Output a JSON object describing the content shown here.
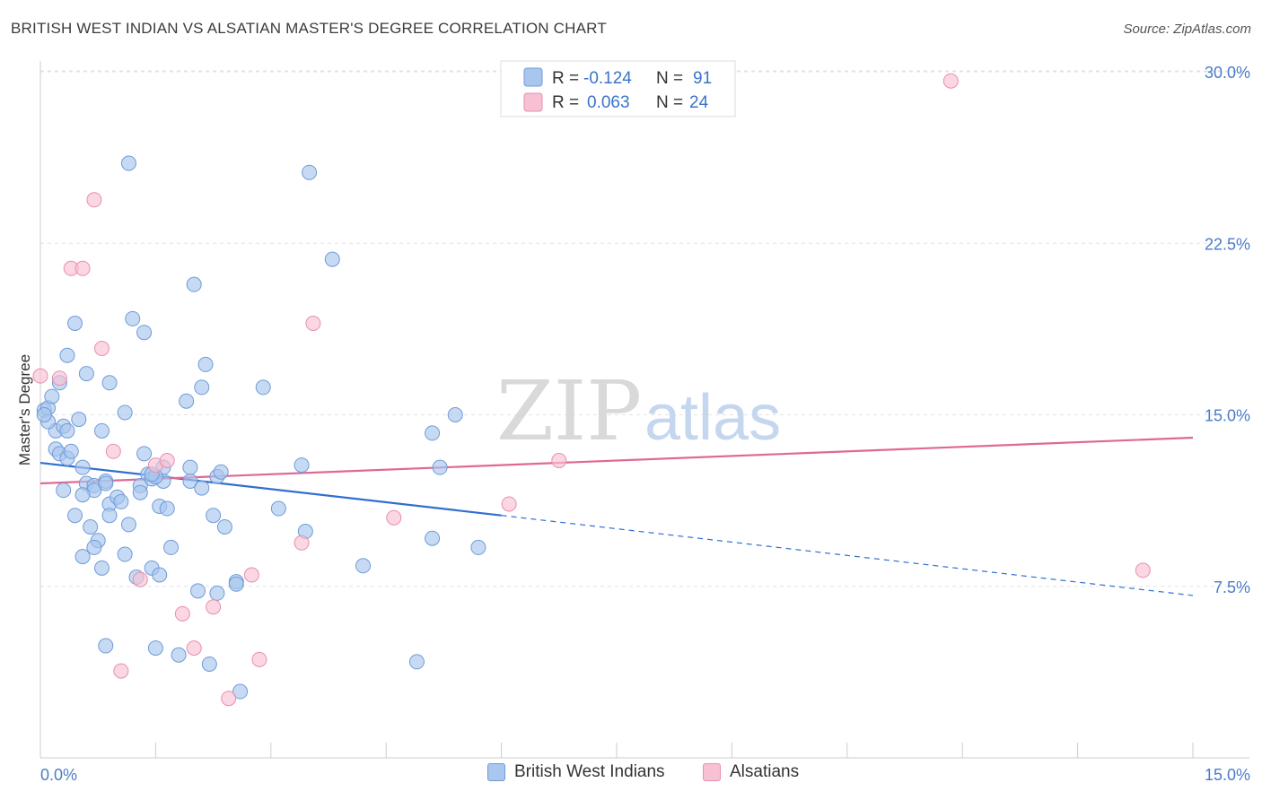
{
  "title": "BRITISH WEST INDIAN VS ALSATIAN MASTER'S DEGREE CORRELATION CHART",
  "source": "Source: ZipAtlas.com",
  "watermark": {
    "part1": "ZIP",
    "part2": "atlas"
  },
  "legend": {
    "rows": [
      {
        "r_label": "R =",
        "r_value": "-0.124",
        "n_label": "N =",
        "n_value": "91",
        "color": "#a9c6ee",
        "stroke": "#6f9bd8"
      },
      {
        "r_label": "R =",
        "r_value": "0.063",
        "n_label": "N =",
        "n_value": "24",
        "color": "#f7c1d3",
        "stroke": "#e88fae"
      }
    ]
  },
  "bottom_legend": [
    {
      "label": "British West Indians",
      "color": "#a9c6ee",
      "stroke": "#6f9bd8"
    },
    {
      "label": "Alsatians",
      "color": "#f7c1d3",
      "stroke": "#e88fae"
    }
  ],
  "chart_data": {
    "type": "scatter",
    "title": "BRITISH WEST INDIAN VS ALSATIAN MASTER'S DEGREE CORRELATION CHART",
    "xlabel": "",
    "ylabel": "Master's Degree",
    "xlim": [
      0,
      15
    ],
    "ylim": [
      0,
      31
    ],
    "x_tick_labels": [
      "0.0%",
      "15.0%"
    ],
    "y_ticks": [
      7.5,
      15.0,
      22.5,
      30.0
    ],
    "y_tick_labels": [
      "7.5%",
      "15.0%",
      "22.5%",
      "30.0%"
    ],
    "grid": true,
    "legend_position": "top-center",
    "series": [
      {
        "name": "British West Indians",
        "color": "#6f9bd8",
        "fill": "#a9c6ee",
        "trend": {
          "x0": 0,
          "y0": 12.9,
          "x1": 6.0,
          "y1": 10.6,
          "x_dash_end": 15.0,
          "y_dash_end": 7.1
        },
        "points": [
          [
            0.05,
            15.2
          ],
          [
            0.1,
            15.3
          ],
          [
            0.15,
            15.8
          ],
          [
            0.2,
            14.3
          ],
          [
            0.1,
            14.7
          ],
          [
            0.05,
            15.0
          ],
          [
            0.25,
            16.4
          ],
          [
            0.35,
            17.6
          ],
          [
            0.45,
            19.0
          ],
          [
            0.6,
            16.8
          ],
          [
            0.9,
            16.4
          ],
          [
            1.1,
            15.1
          ],
          [
            1.15,
            26.0
          ],
          [
            1.2,
            19.2
          ],
          [
            1.35,
            18.6
          ],
          [
            0.5,
            14.8
          ],
          [
            0.3,
            14.5
          ],
          [
            0.35,
            14.3
          ],
          [
            0.8,
            14.3
          ],
          [
            0.2,
            13.5
          ],
          [
            0.25,
            13.3
          ],
          [
            0.35,
            13.1
          ],
          [
            0.55,
            12.7
          ],
          [
            0.6,
            12.0
          ],
          [
            0.7,
            11.9
          ],
          [
            0.7,
            11.7
          ],
          [
            0.85,
            12.1
          ],
          [
            0.9,
            11.1
          ],
          [
            1.0,
            11.4
          ],
          [
            1.05,
            11.2
          ],
          [
            1.3,
            11.9
          ],
          [
            1.3,
            11.6
          ],
          [
            1.35,
            13.3
          ],
          [
            1.4,
            12.4
          ],
          [
            1.45,
            12.2
          ],
          [
            1.6,
            12.1
          ],
          [
            1.6,
            12.7
          ],
          [
            1.55,
            11.0
          ],
          [
            1.65,
            10.9
          ],
          [
            0.45,
            10.6
          ],
          [
            0.65,
            10.1
          ],
          [
            0.9,
            10.6
          ],
          [
            1.15,
            10.2
          ],
          [
            0.75,
            9.5
          ],
          [
            0.7,
            9.2
          ],
          [
            0.55,
            8.8
          ],
          [
            0.8,
            8.3
          ],
          [
            1.1,
            8.9
          ],
          [
            1.25,
            7.9
          ],
          [
            1.45,
            8.3
          ],
          [
            1.55,
            8.0
          ],
          [
            1.7,
            9.2
          ],
          [
            1.9,
            15.6
          ],
          [
            2.0,
            20.7
          ],
          [
            2.1,
            16.2
          ],
          [
            2.15,
            17.2
          ],
          [
            1.95,
            12.1
          ],
          [
            1.95,
            12.7
          ],
          [
            2.1,
            11.8
          ],
          [
            2.3,
            12.3
          ],
          [
            2.35,
            12.5
          ],
          [
            2.25,
            10.6
          ],
          [
            2.4,
            10.1
          ],
          [
            2.05,
            7.3
          ],
          [
            2.3,
            7.2
          ],
          [
            2.55,
            7.7
          ],
          [
            2.55,
            7.6
          ],
          [
            2.9,
            16.2
          ],
          [
            3.1,
            10.9
          ],
          [
            3.4,
            12.8
          ],
          [
            3.45,
            9.9
          ],
          [
            3.5,
            25.6
          ],
          [
            3.8,
            21.8
          ],
          [
            4.2,
            8.4
          ],
          [
            4.9,
            4.2
          ],
          [
            5.1,
            14.2
          ],
          [
            5.1,
            9.6
          ],
          [
            5.2,
            12.7
          ],
          [
            5.4,
            15.0
          ],
          [
            5.7,
            9.2
          ],
          [
            0.85,
            4.9
          ],
          [
            1.5,
            4.8
          ],
          [
            1.8,
            4.5
          ],
          [
            2.2,
            4.1
          ],
          [
            2.6,
            2.9
          ],
          [
            0.3,
            11.7
          ],
          [
            0.55,
            11.5
          ],
          [
            1.5,
            12.3
          ],
          [
            1.45,
            12.4
          ],
          [
            0.85,
            12.0
          ],
          [
            0.4,
            13.4
          ]
        ]
      },
      {
        "name": "Alsatians",
        "color": "#e88fae",
        "fill": "#f7c1d3",
        "trend": {
          "x0": 0,
          "y0": 12.0,
          "x1": 15.0,
          "y1": 14.0
        },
        "points": [
          [
            0.0,
            16.7
          ],
          [
            0.25,
            16.6
          ],
          [
            0.4,
            21.4
          ],
          [
            0.55,
            21.4
          ],
          [
            0.7,
            24.4
          ],
          [
            0.8,
            17.9
          ],
          [
            0.95,
            13.4
          ],
          [
            1.05,
            3.8
          ],
          [
            1.3,
            7.8
          ],
          [
            1.5,
            12.8
          ],
          [
            1.65,
            13.0
          ],
          [
            1.85,
            6.3
          ],
          [
            2.0,
            4.8
          ],
          [
            2.25,
            6.6
          ],
          [
            2.45,
            2.6
          ],
          [
            2.75,
            8.0
          ],
          [
            2.85,
            4.3
          ],
          [
            3.4,
            9.4
          ],
          [
            3.55,
            19.0
          ],
          [
            4.6,
            10.5
          ],
          [
            6.1,
            11.1
          ],
          [
            6.75,
            13.0
          ],
          [
            11.85,
            29.6
          ],
          [
            14.35,
            8.2
          ]
        ]
      }
    ]
  }
}
